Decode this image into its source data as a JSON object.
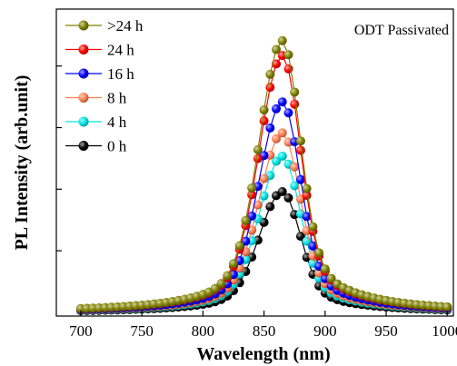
{
  "chart_data": {
    "type": "line",
    "xlabel": "Wavelength (nm)",
    "ylabel": "PL Intensity (arb.unit)",
    "annotation": "ODT Passivated",
    "xlim": [
      680,
      1005
    ],
    "ylim": [
      -0.012,
      0.98
    ],
    "x_ticks": [
      700,
      750,
      800,
      850,
      900,
      950,
      1000
    ],
    "y_ticks": [
      0.199,
      0.398,
      0.597,
      0.796
    ],
    "legend_position": "top-left",
    "peak_wavelength_nm": 865,
    "x_start_nm": 700,
    "x_end_nm": 1000,
    "x_step_nm": 5,
    "series": [
      {
        "name": ">24 h",
        "color": "#808000",
        "peak": 0.878
      },
      {
        "name": "24 h",
        "color": "#ff0000",
        "peak": 0.83
      },
      {
        "name": "16 h",
        "color": "#0000ff",
        "peak": 0.68
      },
      {
        "name": "8 h",
        "color": "#ff7f50",
        "peak": 0.58
      },
      {
        "name": "4 h",
        "color": "#00e5e5",
        "peak": 0.505
      },
      {
        "name": "0 h",
        "color": "#000000",
        "peak": 0.39
      }
    ]
  }
}
